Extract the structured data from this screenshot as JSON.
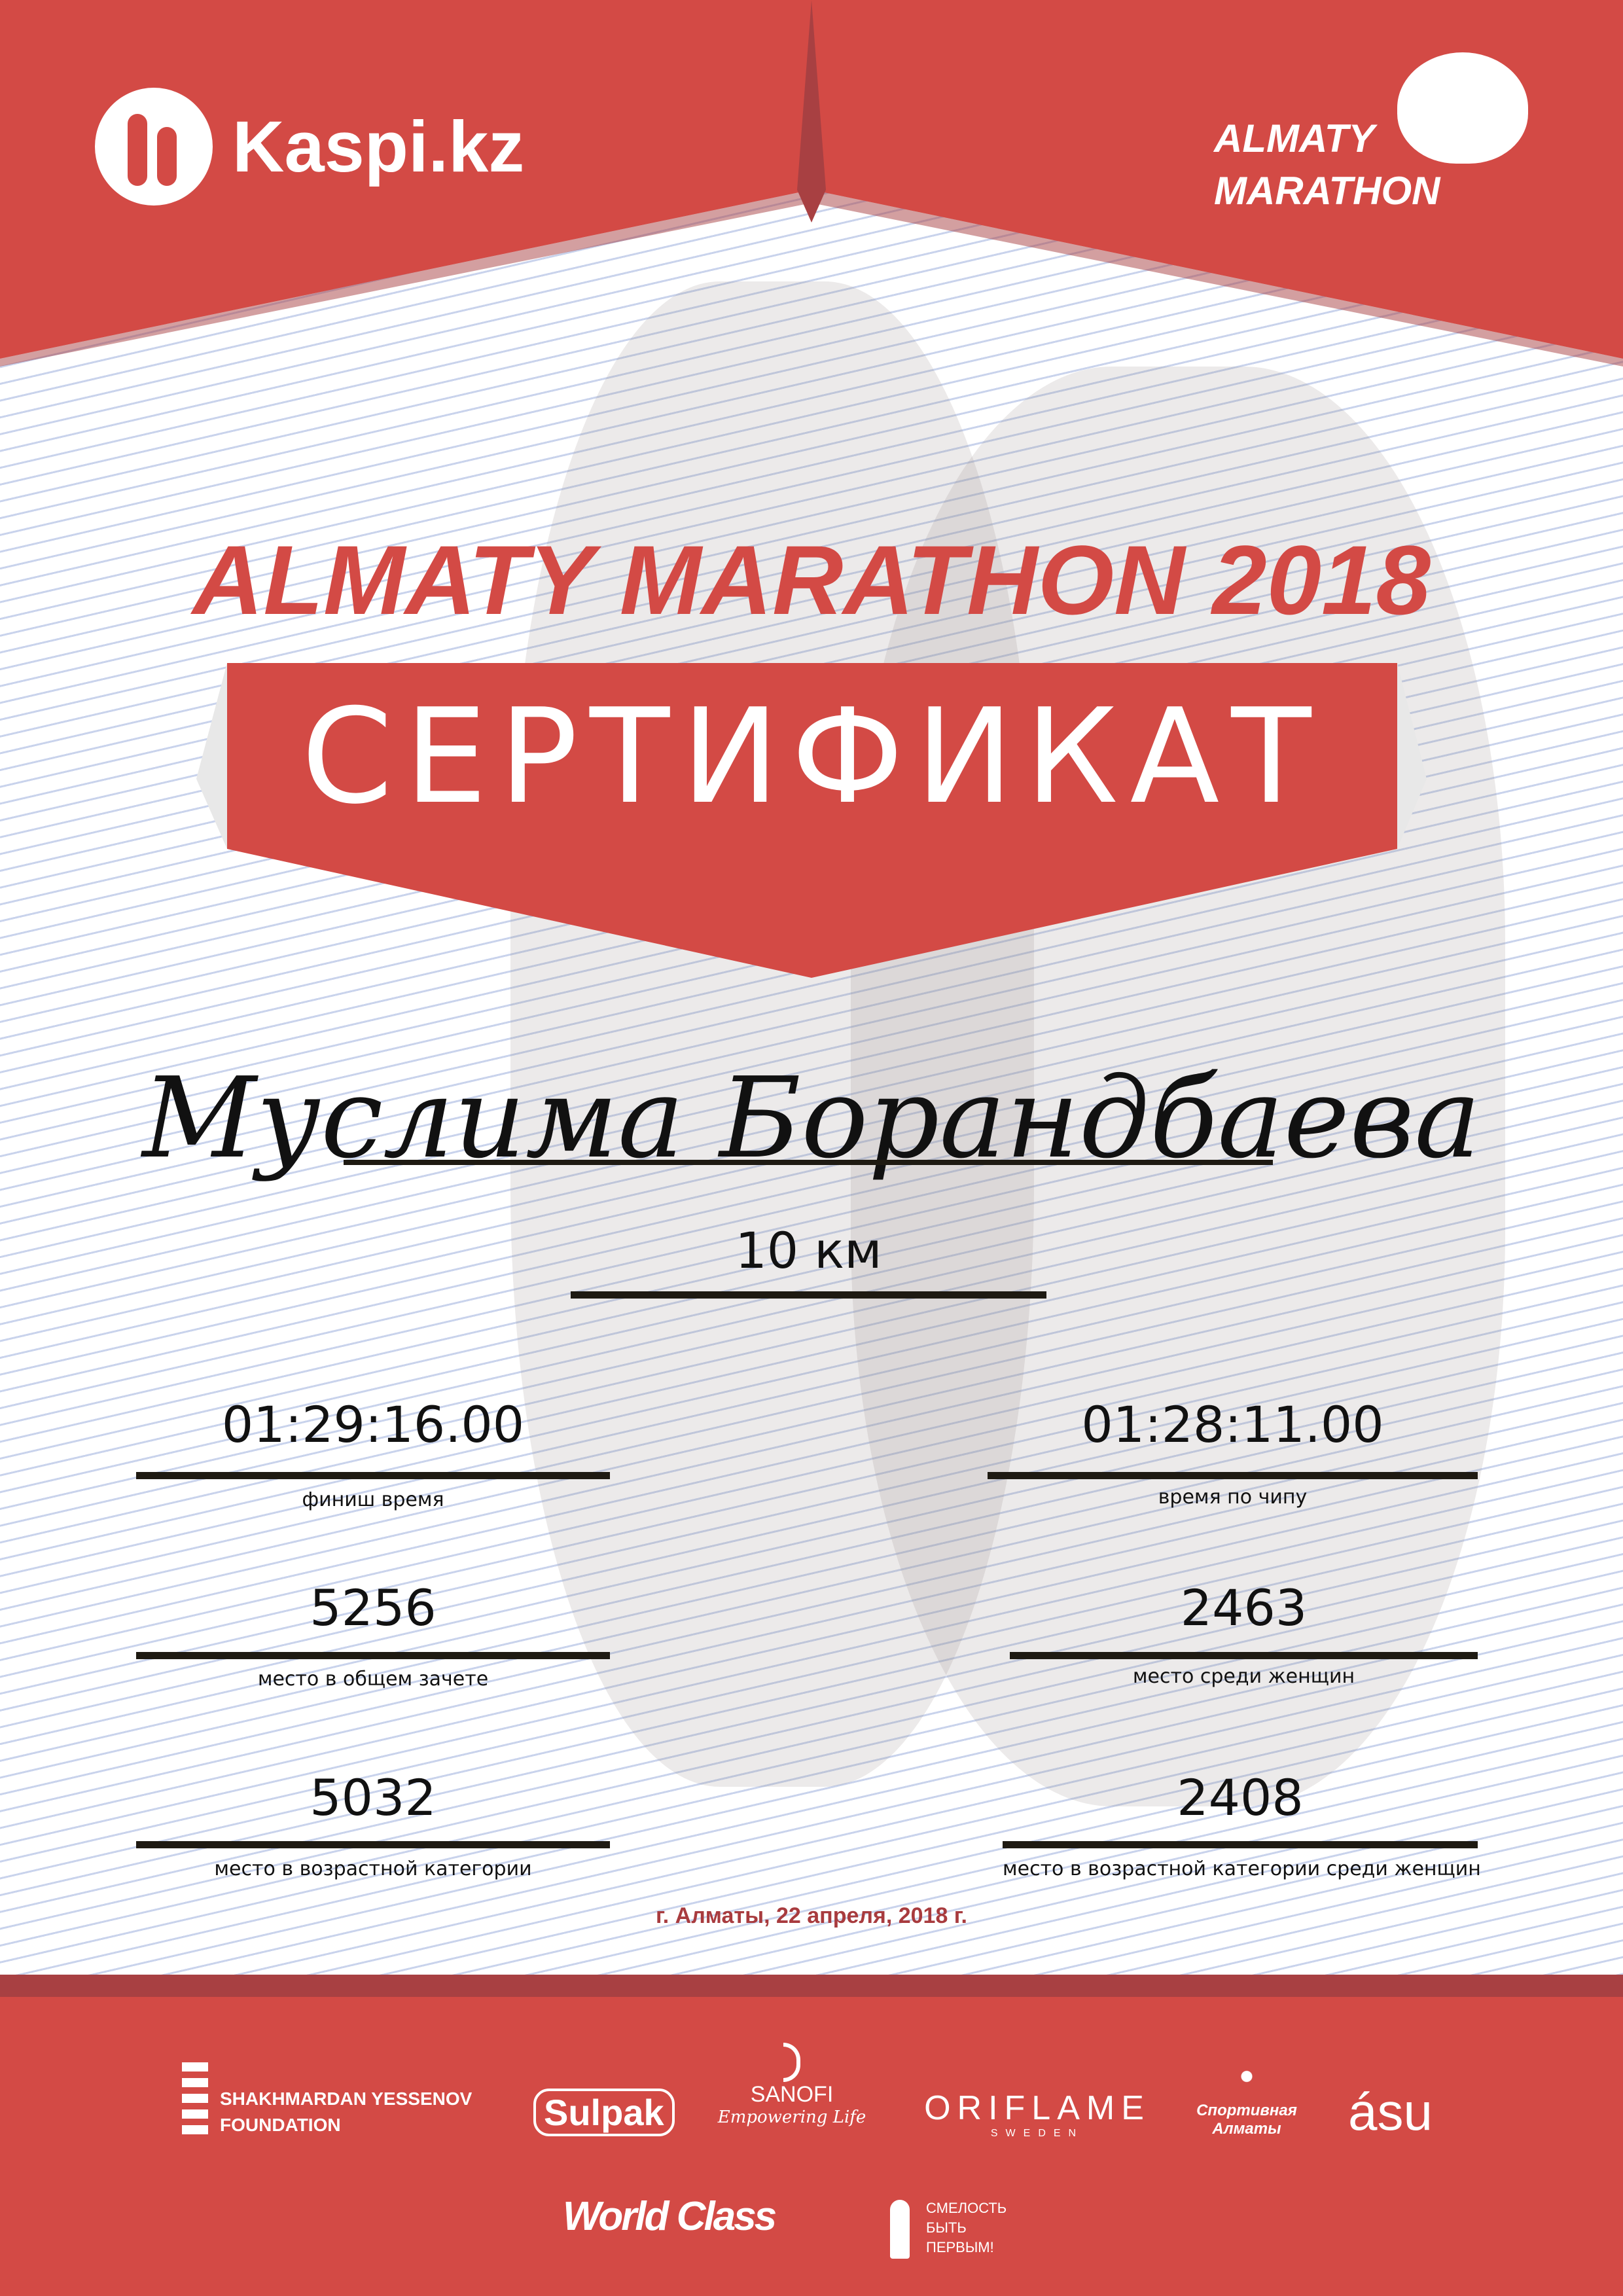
{
  "header": {
    "sponsor_logo": "Kaspi.kz",
    "event_logo": [
      "ALMATY",
      "MARATHON"
    ]
  },
  "title": "ALMATY MARATHON 2018",
  "banner": "СЕРТИФИКАТ",
  "participant": {
    "name": "Муслима Борандбаева",
    "distance": "10 км"
  },
  "results": [
    {
      "value": "01:29:16.00",
      "label": "финиш время"
    },
    {
      "value": "01:28:11.00",
      "label": "время по чипу"
    },
    {
      "value": "5256",
      "label": "место в общем зачете"
    },
    {
      "value": "2463",
      "label": "место среди женщин"
    },
    {
      "value": "5032",
      "label": "место в возрастной категории"
    },
    {
      "value": "2408",
      "label": "место в возрастной категории среди женщин"
    }
  ],
  "date": "г. Алматы, 22 апреля, 2018 г.",
  "footer": {
    "partners": {
      "yessenov": [
        "SHAKHMARDAN YESSENOV",
        "FOUNDATION"
      ],
      "sulpak": "Sulpak",
      "sanofi": [
        "SANOFI",
        "Empowering Life"
      ],
      "oriflame": [
        "ORIFLAME",
        "SWEDEN"
      ],
      "sport_almaty": "Спортивная Алматы",
      "asu": "ásu",
      "worldclass": "World Class",
      "smelost": [
        "СМЕЛОСТЬ",
        "БЫТЬ",
        "ПЕРВЫМ!"
      ]
    }
  },
  "colors": {
    "red": "#d34a45",
    "dark_red": "#a84042",
    "date": "#a83b3e"
  }
}
